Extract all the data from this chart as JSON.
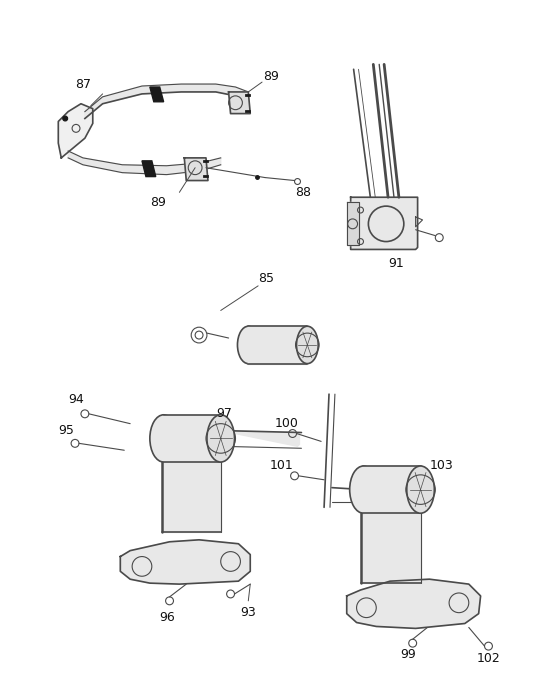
{
  "bg_color": "#ffffff",
  "line_color": "#4a4a4a",
  "dark_color": "#1a1a1a",
  "gray_color": "#888888",
  "figsize": [
    5.33,
    6.79
  ],
  "dpi": 100
}
